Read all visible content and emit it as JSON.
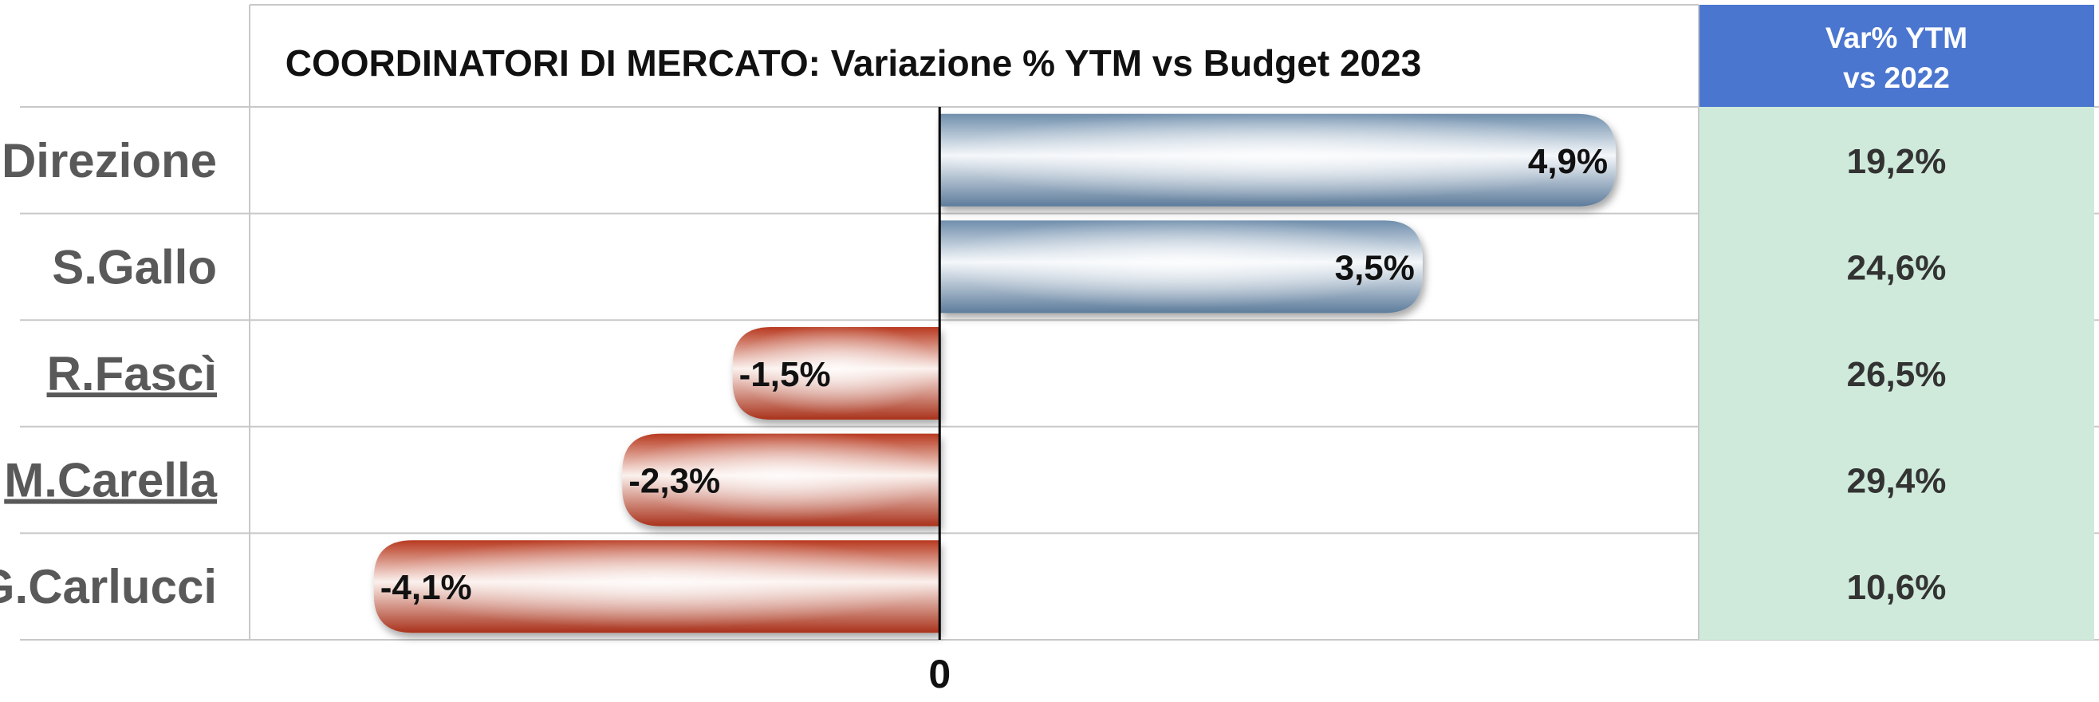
{
  "chart_data": {
    "type": "bar",
    "orientation": "horizontal",
    "title": "COORDINATORI DI MERCATO: Variazione % YTM vs Budget 2023",
    "categories": [
      "Direzione",
      "S.Gallo",
      "R.Fascì",
      "M.Carella",
      "G.Carlucci"
    ],
    "values": [
      4.9,
      3.5,
      -1.5,
      -2.3,
      -4.1
    ],
    "data_labels": [
      "4,9%",
      "3,5%",
      "-1,5%",
      "-2,3%",
      "-4,1%"
    ],
    "zero_label": "0",
    "xlim": [
      -5.0,
      5.5
    ],
    "grid": true,
    "positive_color": "#7f9db8",
    "negative_color": "#c0442a",
    "side_column": {
      "header_line1": "Var% YTM",
      "header_line2": "vs 2022",
      "header_color": "#4a76cf",
      "cell_color": "#cfeadb",
      "values": [
        "19,2%",
        "24,6%",
        "26,5%",
        "29,4%",
        "10,6%"
      ]
    }
  }
}
